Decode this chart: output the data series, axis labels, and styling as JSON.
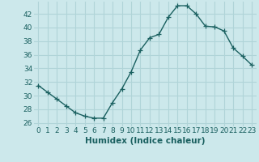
{
  "x": [
    0,
    1,
    2,
    3,
    4,
    5,
    6,
    7,
    8,
    9,
    10,
    11,
    12,
    13,
    14,
    15,
    16,
    17,
    18,
    19,
    20,
    21,
    22,
    23
  ],
  "y": [
    31.5,
    30.5,
    29.5,
    28.5,
    27.5,
    27.0,
    26.7,
    26.7,
    29.0,
    31.0,
    33.5,
    36.7,
    38.5,
    39.0,
    41.5,
    43.2,
    43.2,
    42.0,
    40.2,
    40.1,
    39.5,
    37.0,
    35.8,
    34.5
  ],
  "line_color": "#1a6060",
  "marker": "+",
  "marker_size": 4,
  "bg_color": "#cce8eb",
  "grid_color": "#b0d4d8",
  "xlabel": "Humidex (Indice chaleur)",
  "xlim": [
    -0.5,
    23.5
  ],
  "ylim": [
    25.5,
    43.8
  ],
  "xticks": [
    0,
    1,
    2,
    3,
    4,
    5,
    6,
    7,
    8,
    9,
    10,
    11,
    12,
    13,
    14,
    15,
    16,
    17,
    18,
    19,
    20,
    21,
    22,
    23
  ],
  "yticks": [
    26,
    28,
    30,
    32,
    34,
    36,
    38,
    40,
    42
  ],
  "xlabel_fontsize": 7.5,
  "tick_fontsize": 6.5,
  "line_width": 1.0,
  "marker_edge_width": 0.9
}
